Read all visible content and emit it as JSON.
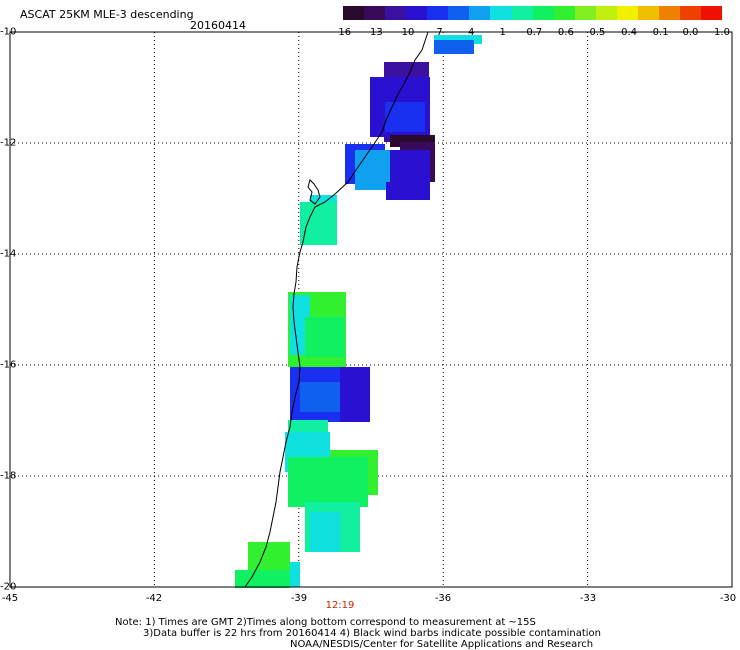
{
  "header": {
    "title": "ASCAT 25KM MLE-3 descending",
    "date": "20160414"
  },
  "colorbar": {
    "colors": [
      "#2a0a2a",
      "#3a0a5a",
      "#3a10a0",
      "#2a10d0",
      "#1a30f0",
      "#1060f0",
      "#10a0f0",
      "#10e0e0",
      "#10f0a0",
      "#10f060",
      "#30f030",
      "#80f020",
      "#c0f010",
      "#f0f000",
      "#f0c000",
      "#f08000",
      "#f04000",
      "#f01000"
    ],
    "labels": [
      "-16",
      "-13",
      "-10",
      "-7",
      "-4",
      "-1",
      "-0.7",
      "-0.6",
      "-0.5",
      "-0.4",
      "-0.1",
      "0.0",
      "1.0"
    ]
  },
  "axes": {
    "lat_labels": [
      "-10",
      "-12",
      "-14",
      "-16",
      "-18",
      "-20"
    ],
    "lon_labels": [
      "-45",
      "-42",
      "-39",
      "-36",
      "-33",
      "-30"
    ],
    "time_label": "12:19"
  },
  "notes": {
    "line1": "Note: 1) Times are GMT 2)Times along bottom correspond to measurement at ~15S",
    "line2": "3)Data buffer is 22 hrs from 20160414 4) Black wind barbs indicate possible contamination",
    "line3": "NOAA/NESDIS/Center for Satellite Applications and Research"
  }
}
